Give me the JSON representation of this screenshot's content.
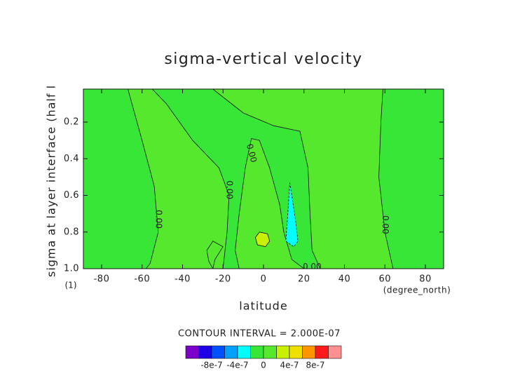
{
  "chart_data": {
    "type": "contour",
    "title": "sigma-vertical velocity",
    "xlabel": "latitude",
    "ylabel": "sigma at layer interface (half l",
    "y_unit": "(1)",
    "x_unit": "(degree_north)",
    "contour_interval": "CONTOUR INTERVAL = 2.000E-07",
    "xlim": [
      -89,
      89
    ],
    "ylim": [
      1.0,
      0.02
    ],
    "xticks": [
      -80,
      -60,
      -40,
      -20,
      0,
      20,
      40,
      60,
      80
    ],
    "yticks": [
      0.2,
      0.4,
      0.6,
      0.8,
      {
        "value": 1.0,
        "label": "1.0"
      }
    ],
    "background_level": -2e-07,
    "regions": [
      {
        "level": 0,
        "points": [
          [
            -67,
            0.02
          ],
          [
            -60,
            0.3
          ],
          [
            -54,
            0.55
          ],
          [
            -52,
            0.8
          ],
          [
            -56,
            0.97
          ],
          [
            -58,
            1.0
          ],
          [
            -20,
            1.0
          ],
          [
            -18,
            0.8
          ],
          [
            -17,
            0.6
          ],
          [
            -22,
            0.45
          ],
          [
            -35,
            0.3
          ],
          [
            -48,
            0.1
          ],
          [
            -55,
            0.02
          ]
        ]
      },
      {
        "level": 0,
        "points": [
          [
            -25,
            0.02
          ],
          [
            -10,
            0.15
          ],
          [
            5,
            0.22
          ],
          [
            18,
            0.25
          ],
          [
            22,
            0.45
          ],
          [
            23,
            0.7
          ],
          [
            24,
            0.9
          ],
          [
            28,
            1.0
          ],
          [
            64,
            1.0
          ],
          [
            60,
            0.8
          ],
          [
            57,
            0.5
          ],
          [
            58,
            0.2
          ],
          [
            59,
            0.02
          ]
        ]
      },
      {
        "level": 0,
        "points": [
          [
            -6,
            0.29
          ],
          [
            -2,
            0.3
          ],
          [
            3,
            0.45
          ],
          [
            8,
            0.65
          ],
          [
            10,
            0.8
          ],
          [
            14,
            0.95
          ],
          [
            20,
            1.0
          ],
          [
            -12,
            1.0
          ],
          [
            -14,
            0.9
          ],
          [
            -12,
            0.7
          ],
          [
            -9,
            0.45
          ]
        ]
      },
      {
        "level": 0,
        "points": [
          [
            -28,
            0.9
          ],
          [
            -25,
            0.85
          ],
          [
            -20,
            0.88
          ],
          [
            -24,
            0.95
          ],
          [
            -25,
            1.0
          ],
          [
            -27,
            0.96
          ]
        ]
      },
      {
        "level": -4e-07,
        "points": [
          [
            13,
            0.53
          ],
          [
            14,
            0.6
          ],
          [
            16,
            0.75
          ],
          [
            17,
            0.85
          ],
          [
            15,
            0.88
          ],
          [
            11,
            0.85
          ],
          [
            12,
            0.7
          ]
        ]
      },
      {
        "level": 2e-07,
        "points": [
          [
            -2,
            0.8
          ],
          [
            2,
            0.81
          ],
          [
            3,
            0.85
          ],
          [
            1,
            0.88
          ],
          [
            -3,
            0.87
          ],
          [
            -4,
            0.83
          ]
        ]
      }
    ],
    "contour_labels": [
      {
        "text": "0.00",
        "x": -52,
        "y": 0.73
      },
      {
        "text": "0.00",
        "x": -17,
        "y": 0.57
      },
      {
        "text": "0.00",
        "x": -6,
        "y": 0.37
      },
      {
        "text": "0.00",
        "x": 60,
        "y": 0.76
      },
      {
        "text": "0.00",
        "x": 24,
        "y": 0.99
      }
    ],
    "colorbar": {
      "levels": [
        -1e-06,
        -8e-07,
        -6e-07,
        -4e-07,
        -2e-07,
        0,
        2e-07,
        4e-07,
        6e-07,
        8e-07,
        1e-06
      ],
      "colors": [
        "#7b00c8",
        "#1e00e6",
        "#0050ff",
        "#00a0ff",
        "#00ffff",
        "#38e638",
        "#55e82c",
        "#c8f000",
        "#f0e000",
        "#ff9600",
        "#ff1a1a",
        "#ff9090"
      ],
      "ticks": [
        {
          "value": -8e-07,
          "label": "-8e-7"
        },
        {
          "value": -4e-07,
          "label": "-4e-7"
        },
        {
          "value": 0,
          "label": "0"
        },
        {
          "value": 4e-07,
          "label": "4e-7"
        },
        {
          "value": 8e-07,
          "label": "8e-7"
        }
      ]
    }
  }
}
